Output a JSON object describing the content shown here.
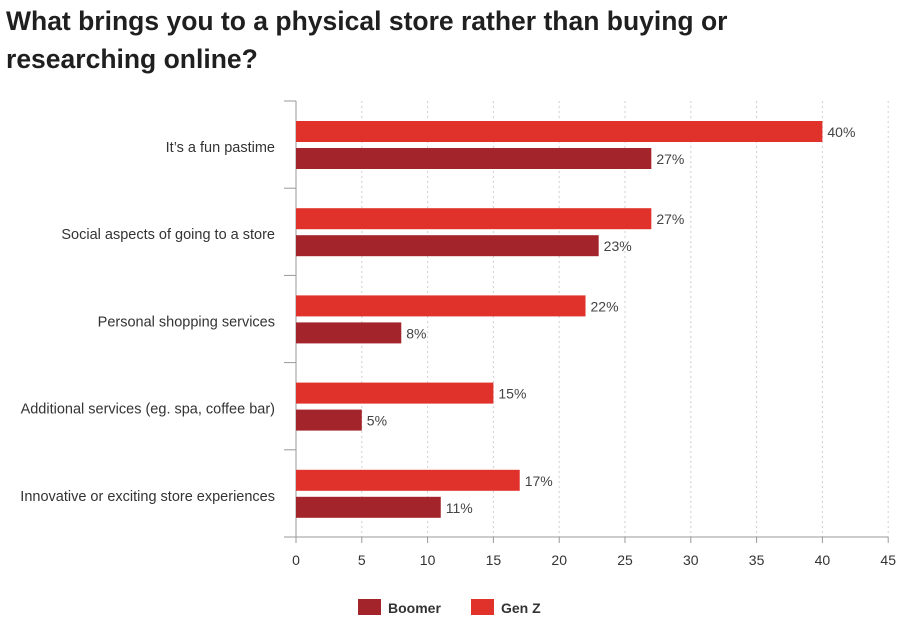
{
  "chart_data": {
    "type": "bar",
    "orientation": "horizontal",
    "title": "What brings you to a physical store rather than buying or researching online?",
    "categories": [
      "It’s a fun pastime",
      "Social aspects of going to a store",
      "Personal shopping services",
      "Additional services (eg. spa, coffee bar)",
      "Innovative or exciting store experiences"
    ],
    "series": [
      {
        "name": "Gen Z",
        "color": "#e0312b",
        "values": [
          40,
          27,
          22,
          15,
          17
        ]
      },
      {
        "name": "Boomer",
        "color": "#a3242a",
        "values": [
          27,
          23,
          8,
          5,
          11
        ]
      }
    ],
    "value_suffix": "%",
    "xlim": [
      0,
      45
    ],
    "xticks": [
      0,
      5,
      10,
      15,
      20,
      25,
      30,
      35,
      40,
      45
    ],
    "grid": "vertical dotted",
    "legend": {
      "position": "bottom-center",
      "items": [
        {
          "name": "Boomer",
          "color": "#a3242a"
        },
        {
          "name": "Gen Z",
          "color": "#e0312b"
        }
      ]
    }
  }
}
